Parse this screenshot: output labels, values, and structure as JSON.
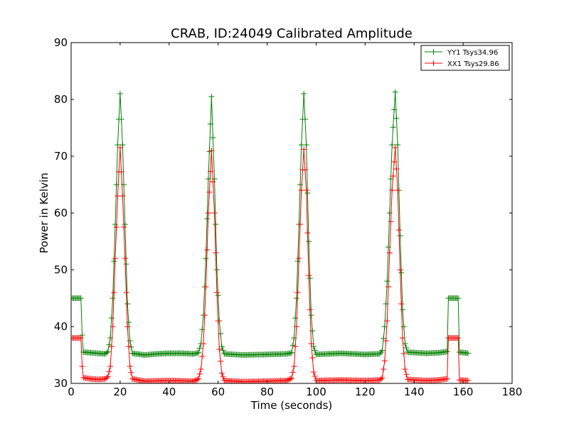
{
  "chart_data": {
    "type": "line",
    "title": "CRAB, ID:24049 Calibrated Amplitude",
    "xlabel": "Time (seconds)",
    "ylabel": "Power in Kelvin",
    "xlim": [
      0,
      180
    ],
    "ylim": [
      30,
      90
    ],
    "xticks": [
      0,
      20,
      40,
      60,
      80,
      100,
      120,
      140,
      160,
      180
    ],
    "yticks": [
      30,
      40,
      50,
      60,
      70,
      80,
      90
    ],
    "grid": false,
    "legend_position": "top-right",
    "marker": "+",
    "series": [
      {
        "name": "YY1 Tsys34.96",
        "color": "#008000",
        "points": [
          [
            0,
            45.0
          ],
          [
            2,
            45.0
          ],
          [
            4,
            45.0
          ],
          [
            4.5,
            38.5
          ],
          [
            5,
            35.5
          ],
          [
            8,
            35.4
          ],
          [
            11,
            35.3
          ],
          [
            14,
            35.2
          ],
          [
            15,
            35.6
          ],
          [
            16,
            38.0
          ],
          [
            17,
            45.0
          ],
          [
            18,
            58.0
          ],
          [
            19,
            72.0
          ],
          [
            20,
            81.0
          ],
          [
            21,
            72.0
          ],
          [
            22,
            58.0
          ],
          [
            23,
            44.0
          ],
          [
            24,
            37.5
          ],
          [
            25,
            35.3
          ],
          [
            30,
            35.0
          ],
          [
            35,
            35.2
          ],
          [
            40,
            35.3
          ],
          [
            45,
            35.3
          ],
          [
            50,
            35.2
          ],
          [
            52,
            35.4
          ],
          [
            53,
            37.0
          ],
          [
            54,
            42.0
          ],
          [
            55,
            52.0
          ],
          [
            56,
            66.0
          ],
          [
            57.3,
            80.5
          ],
          [
            58.5,
            66.0
          ],
          [
            59.5,
            50.0
          ],
          [
            60.5,
            41.0
          ],
          [
            61.5,
            36.5
          ],
          [
            62.5,
            35.2
          ],
          [
            70,
            35.0
          ],
          [
            80,
            35.1
          ],
          [
            88,
            35.2
          ],
          [
            90,
            35.4
          ],
          [
            91,
            38.0
          ],
          [
            92,
            45.0
          ],
          [
            93,
            58.0
          ],
          [
            94,
            72.0
          ],
          [
            95,
            81.0
          ],
          [
            96,
            72.0
          ],
          [
            97,
            55.0
          ],
          [
            98,
            42.0
          ],
          [
            99,
            36.5
          ],
          [
            100,
            35.1
          ],
          [
            110,
            35.3
          ],
          [
            120,
            35.1
          ],
          [
            126,
            35.2
          ],
          [
            127,
            35.8
          ],
          [
            128,
            40.0
          ],
          [
            129,
            48.0
          ],
          [
            130,
            60.0
          ],
          [
            131,
            72.0
          ],
          [
            132.3,
            81.3
          ],
          [
            133.3,
            72.0
          ],
          [
            134.3,
            56.0
          ],
          [
            135.3,
            43.0
          ],
          [
            136.3,
            37.0
          ],
          [
            137.3,
            35.5
          ],
          [
            145,
            35.3
          ],
          [
            150,
            35.4
          ],
          [
            153.5,
            35.6
          ],
          [
            154,
            45.0
          ],
          [
            158,
            45.0
          ],
          [
            158.5,
            35.5
          ],
          [
            162,
            35.3
          ]
        ]
      },
      {
        "name": "XX1 Tsys29.86",
        "color": "#ff0000",
        "points": [
          [
            0,
            38.0
          ],
          [
            2,
            38.0
          ],
          [
            4,
            38.0
          ],
          [
            4.5,
            33.0
          ],
          [
            5,
            31.0
          ],
          [
            8,
            30.8
          ],
          [
            11,
            30.7
          ],
          [
            14,
            30.8
          ],
          [
            15,
            31.2
          ],
          [
            16,
            33.0
          ],
          [
            17,
            40.0
          ],
          [
            18,
            52.0
          ],
          [
            19,
            63.0
          ],
          [
            20,
            71.5
          ],
          [
            21,
            63.0
          ],
          [
            22,
            52.0
          ],
          [
            23,
            40.0
          ],
          [
            24,
            33.0
          ],
          [
            25,
            30.8
          ],
          [
            30,
            30.4
          ],
          [
            40,
            30.5
          ],
          [
            50,
            30.4
          ],
          [
            52,
            30.8
          ],
          [
            53,
            32.5
          ],
          [
            54,
            37.0
          ],
          [
            55,
            47.0
          ],
          [
            56,
            60.0
          ],
          [
            57.3,
            71.0
          ],
          [
            58.5,
            60.0
          ],
          [
            59.5,
            46.0
          ],
          [
            60.5,
            36.0
          ],
          [
            61.5,
            31.8
          ],
          [
            62.5,
            30.5
          ],
          [
            70,
            30.3
          ],
          [
            80,
            30.4
          ],
          [
            88,
            30.5
          ],
          [
            90,
            30.9
          ],
          [
            91,
            33.0
          ],
          [
            92,
            40.0
          ],
          [
            93,
            52.0
          ],
          [
            94,
            64.0
          ],
          [
            95,
            71.2
          ],
          [
            96,
            64.0
          ],
          [
            97,
            49.0
          ],
          [
            98,
            37.0
          ],
          [
            99,
            32.0
          ],
          [
            100,
            30.5
          ],
          [
            110,
            30.6
          ],
          [
            120,
            30.5
          ],
          [
            126,
            30.6
          ],
          [
            127,
            31.0
          ],
          [
            128,
            34.0
          ],
          [
            129,
            41.0
          ],
          [
            130,
            53.0
          ],
          [
            131,
            64.0
          ],
          [
            132.3,
            71.5
          ],
          [
            133.3,
            64.0
          ],
          [
            134.3,
            50.0
          ],
          [
            135.3,
            38.0
          ],
          [
            136.3,
            32.5
          ],
          [
            137.3,
            30.7
          ],
          [
            145,
            30.5
          ],
          [
            150,
            30.6
          ],
          [
            153.5,
            30.8
          ],
          [
            154,
            38.0
          ],
          [
            158,
            38.0
          ],
          [
            158.5,
            30.6
          ],
          [
            162,
            30.5
          ]
        ]
      }
    ]
  }
}
